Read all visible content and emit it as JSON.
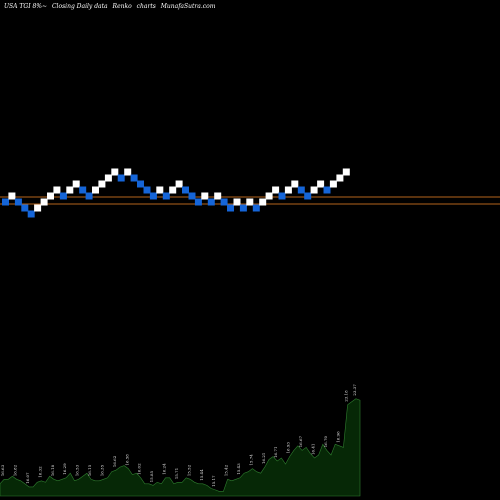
{
  "header": {
    "symbol": "USA TGI 8%~",
    "chart_kind": "Closing Daily data",
    "chart_style": "Renko",
    "suffix": "charts",
    "site": "MunafaSutra.com"
  },
  "colors": {
    "background": "#000000",
    "up_brick": "#ffffff",
    "down_brick": "#1565d8",
    "reference_line": "#b5651d",
    "volume_fill": "#062806",
    "volume_stroke": "#2e7d2e"
  },
  "chart_data": {
    "type": "renko",
    "title": "USA TGI 8%~ Closing Daily data Renko charts",
    "xlabel": "",
    "ylabel": "",
    "grid": false,
    "reference_line_count": 2,
    "bricks": [
      {
        "dir": "down",
        "level": 0
      },
      {
        "dir": "up",
        "level": 1
      },
      {
        "dir": "down",
        "level": 0
      },
      {
        "dir": "down",
        "level": -1
      },
      {
        "dir": "down",
        "level": -2
      },
      {
        "dir": "up",
        "level": -1
      },
      {
        "dir": "up",
        "level": 0
      },
      {
        "dir": "up",
        "level": 1
      },
      {
        "dir": "up",
        "level": 2
      },
      {
        "dir": "down",
        "level": 1
      },
      {
        "dir": "up",
        "level": 2
      },
      {
        "dir": "up",
        "level": 3
      },
      {
        "dir": "down",
        "level": 2
      },
      {
        "dir": "down",
        "level": 1
      },
      {
        "dir": "up",
        "level": 2
      },
      {
        "dir": "up",
        "level": 3
      },
      {
        "dir": "up",
        "level": 4
      },
      {
        "dir": "up",
        "level": 5
      },
      {
        "dir": "down",
        "level": 4
      },
      {
        "dir": "up",
        "level": 5
      },
      {
        "dir": "down",
        "level": 4
      },
      {
        "dir": "down",
        "level": 3
      },
      {
        "dir": "down",
        "level": 2
      },
      {
        "dir": "down",
        "level": 1
      },
      {
        "dir": "up",
        "level": 2
      },
      {
        "dir": "down",
        "level": 1
      },
      {
        "dir": "up",
        "level": 2
      },
      {
        "dir": "up",
        "level": 3
      },
      {
        "dir": "down",
        "level": 2
      },
      {
        "dir": "down",
        "level": 1
      },
      {
        "dir": "down",
        "level": 0
      },
      {
        "dir": "up",
        "level": 1
      },
      {
        "dir": "down",
        "level": 0
      },
      {
        "dir": "up",
        "level": 1
      },
      {
        "dir": "down",
        "level": 0
      },
      {
        "dir": "down",
        "level": -1
      },
      {
        "dir": "up",
        "level": 0
      },
      {
        "dir": "down",
        "level": -1
      },
      {
        "dir": "up",
        "level": 0
      },
      {
        "dir": "down",
        "level": -1
      },
      {
        "dir": "up",
        "level": 0
      },
      {
        "dir": "up",
        "level": 1
      },
      {
        "dir": "up",
        "level": 2
      },
      {
        "dir": "down",
        "level": 1
      },
      {
        "dir": "up",
        "level": 2
      },
      {
        "dir": "up",
        "level": 3
      },
      {
        "dir": "down",
        "level": 2
      },
      {
        "dir": "down",
        "level": 1
      },
      {
        "dir": "up",
        "level": 2
      },
      {
        "dir": "up",
        "level": 3
      },
      {
        "dir": "down",
        "level": 2
      },
      {
        "dir": "up",
        "level": 3
      },
      {
        "dir": "up",
        "level": 4
      },
      {
        "dir": "up",
        "level": 5
      }
    ],
    "volume": {
      "values": [
        8,
        11,
        11,
        13,
        11,
        10,
        8,
        6,
        6,
        9,
        10,
        9,
        13,
        11,
        10,
        11,
        12,
        15,
        10,
        11,
        13,
        15,
        11,
        10,
        10,
        11,
        12,
        16,
        17,
        19,
        20,
        18,
        14,
        15,
        12,
        8,
        8,
        7,
        9,
        8,
        12,
        12,
        8,
        9,
        9,
        12,
        11,
        9,
        8,
        8,
        7,
        5,
        4,
        3,
        3,
        11,
        10,
        11,
        12,
        15,
        16,
        18,
        16,
        15,
        19,
        24,
        26,
        23,
        25,
        21,
        26,
        30,
        33,
        30,
        32,
        28,
        25,
        27,
        34,
        30,
        27,
        34,
        33,
        32,
        60,
        62,
        64,
        63
      ],
      "labels": [
        {
          "i": 1,
          "text": "16.63"
        },
        {
          "i": 4,
          "text": "16.82"
        },
        {
          "i": 7,
          "text": "16.07"
        },
        {
          "i": 10,
          "text": "16.32"
        },
        {
          "i": 13,
          "text": "16.18"
        },
        {
          "i": 16,
          "text": "16.29"
        },
        {
          "i": 19,
          "text": "16.53"
        },
        {
          "i": 22,
          "text": "16.15"
        },
        {
          "i": 25,
          "text": "16.35"
        },
        {
          "i": 28,
          "text": "16.62"
        },
        {
          "i": 31,
          "text": "16.58"
        },
        {
          "i": 34,
          "text": "16.02"
        },
        {
          "i": 37,
          "text": "15.85"
        },
        {
          "i": 40,
          "text": "16.24"
        },
        {
          "i": 43,
          "text": "15.71"
        },
        {
          "i": 46,
          "text": "15.52"
        },
        {
          "i": 49,
          "text": "15.44"
        },
        {
          "i": 52,
          "text": "15.17"
        },
        {
          "i": 55,
          "text": "15.42"
        },
        {
          "i": 58,
          "text": "15.43"
        },
        {
          "i": 61,
          "text": "15.74"
        },
        {
          "i": 64,
          "text": "16.21"
        },
        {
          "i": 67,
          "text": "16.71"
        },
        {
          "i": 70,
          "text": "16.93"
        },
        {
          "i": 73,
          "text": "16.67"
        },
        {
          "i": 76,
          "text": "16.41"
        },
        {
          "i": 79,
          "text": "16.70"
        },
        {
          "i": 82,
          "text": "16.96"
        },
        {
          "i": 84,
          "text": "23.18"
        },
        {
          "i": 86,
          "text": "23.37"
        }
      ]
    }
  }
}
